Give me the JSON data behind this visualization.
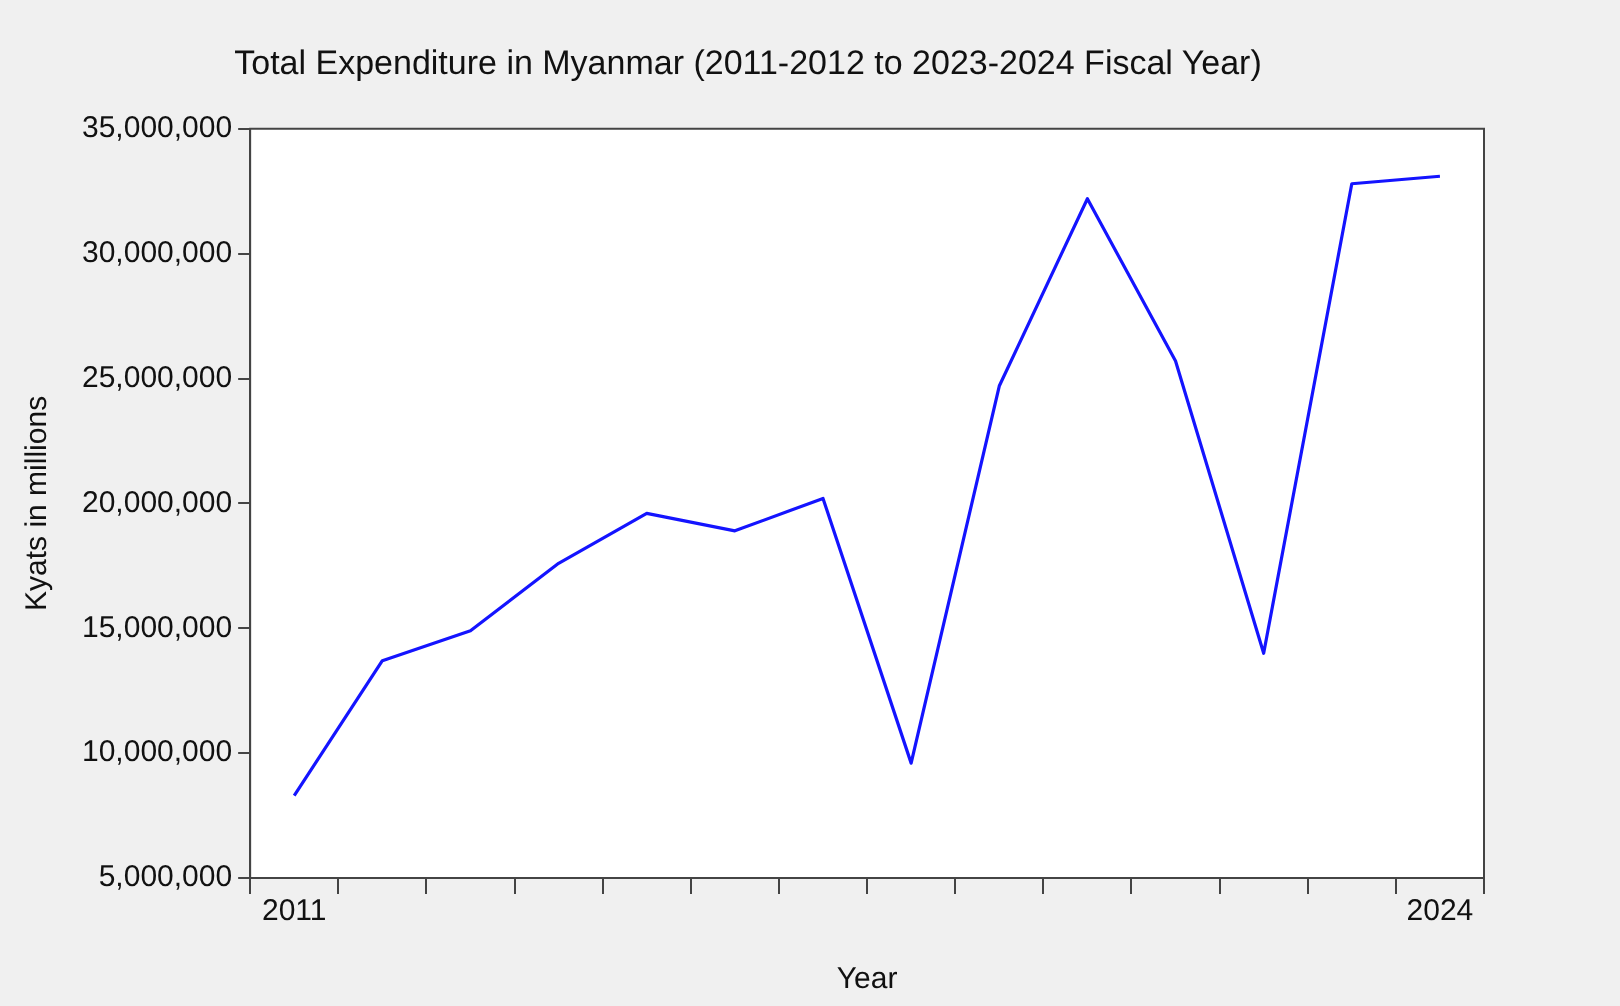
{
  "chart_data": {
    "type": "line",
    "title": "Total Expenditure in Myanmar (2011-2012 to 2023-2024 Fiscal Year)",
    "xlabel": "Year",
    "ylabel": "Kyats in millions",
    "categories": [
      "2011",
      null,
      null,
      null,
      null,
      null,
      null,
      null,
      null,
      null,
      null,
      null,
      null,
      "2024"
    ],
    "series": [
      {
        "color": "#1414ff",
        "values": [
          8300000,
          13700000,
          14900000,
          17600000,
          19600000,
          18900000,
          20200000,
          9600000,
          24700000,
          32200000,
          25700000,
          14000000,
          32800000,
          33100000
        ]
      }
    ],
    "ylim": [
      5000000,
      35000000
    ],
    "yticks": [
      {
        "value": 5000000,
        "label": "5,000,000"
      },
      {
        "value": 10000000,
        "label": "10,000,000"
      },
      {
        "value": 15000000,
        "label": "15,000,000"
      },
      {
        "value": 20000000,
        "label": "20,000,000"
      },
      {
        "value": 25000000,
        "label": "25,000,000"
      },
      {
        "value": 30000000,
        "label": "30,000,000"
      },
      {
        "value": 35000000,
        "label": "35,000,000"
      }
    ],
    "grid": false,
    "legend": false,
    "marker": "none",
    "line_style": "solid"
  }
}
